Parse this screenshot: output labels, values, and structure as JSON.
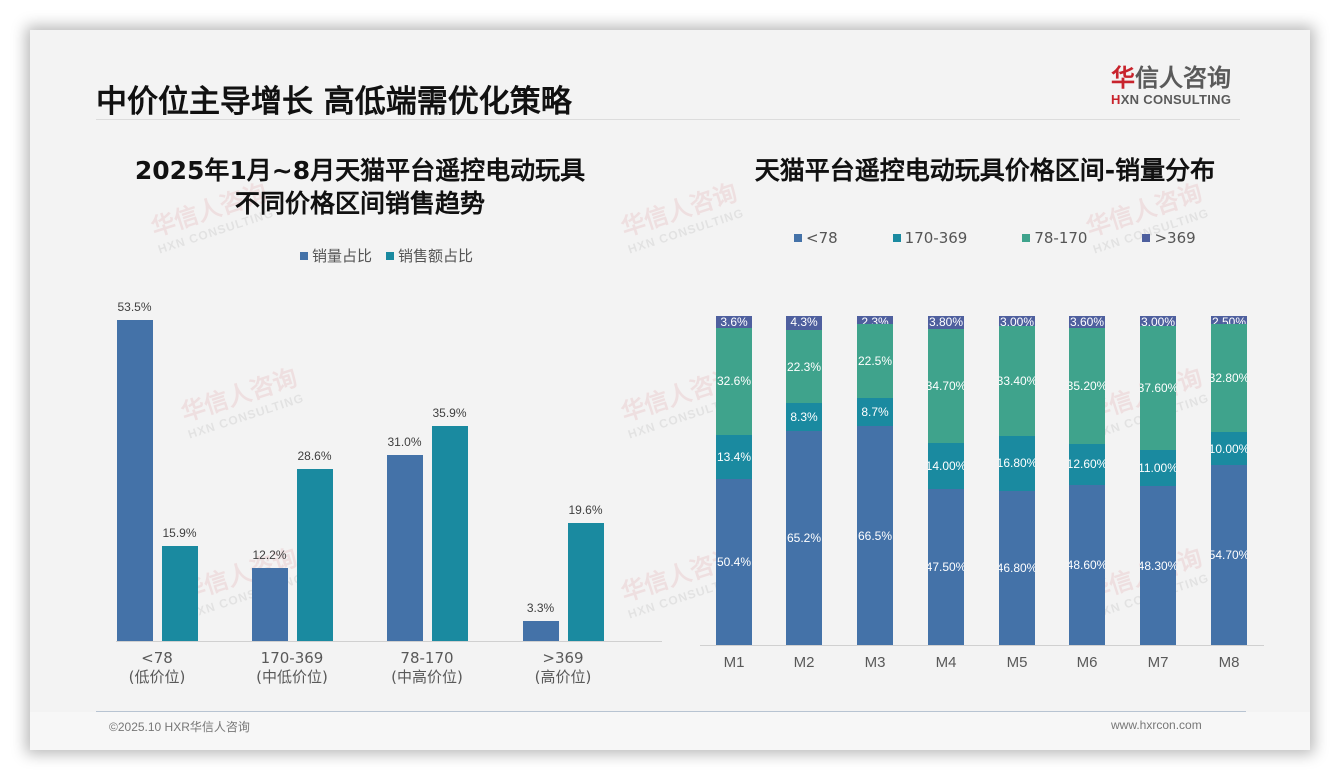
{
  "header": {
    "title": "中价位主导增长 高低端需优化策略",
    "logo": {
      "cn_first": "华",
      "cn_rest": "信人咨询",
      "en_prefix": "H",
      "en_rest": "XN CONSULTING"
    }
  },
  "watermark": {
    "cn": "华信人咨询",
    "en": "HXN CONSULTING"
  },
  "colors": {
    "blue": "#4472a8",
    "teal": "#1a8aa0",
    "green": "#3fa38c",
    "indigo": "#4e5f9e"
  },
  "left_chart": {
    "title_line1": "2025年1月~8月天猫平台遥控电动玩具",
    "title_line2": "不同价格区间销售趋势",
    "legend": [
      "销量占比",
      "销售额占比"
    ],
    "categories": [
      {
        "range": "<78",
        "tier": "(低价位)"
      },
      {
        "range": "170-369",
        "tier": "(中低价位)"
      },
      {
        "range": "78-170",
        "tier": "(中高价位)"
      },
      {
        "range": ">369",
        "tier": "(高价位)"
      }
    ],
    "volume_labels": [
      "53.5%",
      "12.2%",
      "31.0%",
      "3.3%"
    ],
    "sales_labels": [
      "15.9%",
      "28.6%",
      "35.9%",
      "19.6%"
    ]
  },
  "right_chart": {
    "title": "天猫平台遥控电动玩具价格区间-销量分布",
    "legend": [
      "<78",
      "170-369",
      "78-170",
      ">369"
    ],
    "months": [
      "M1",
      "M2",
      "M3",
      "M4",
      "M5",
      "M6",
      "M7",
      "M8"
    ],
    "labels": {
      "lt78": [
        "50.4%",
        "65.2%",
        "66.5%",
        "47.50%",
        "46.80%",
        "48.60%",
        "48.30%",
        "54.70%"
      ],
      "r170_369": [
        "13.4%",
        "8.3%",
        "8.7%",
        "14.00%",
        "16.80%",
        "12.60%",
        "11.00%",
        "10.00%"
      ],
      "r78_170": [
        "32.6%",
        "22.3%",
        "22.5%",
        "34.70%",
        "33.40%",
        "35.20%",
        "37.60%",
        "32.80%"
      ],
      "gt369": [
        "3.6%",
        "4.3%",
        "2.3%",
        "3.80%",
        "3.00%",
        "3.60%",
        "3.00%",
        "2.50%"
      ]
    }
  },
  "footer": {
    "left": "©2025.10 HXR华信人咨询",
    "right": "www.hxrcon.com"
  },
  "chart_data": [
    {
      "type": "bar",
      "title": "2025年1月~8月天猫平台遥控电动玩具不同价格区间销售趋势",
      "categories": [
        "<78 (低价位)",
        "170-369 (中低价位)",
        "78-170 (中高价位)",
        ">369 (高价位)"
      ],
      "series": [
        {
          "name": "销量占比",
          "values": [
            53.5,
            12.2,
            31.0,
            3.3
          ],
          "color": "#4472a8"
        },
        {
          "name": "销售额占比",
          "values": [
            15.9,
            28.6,
            35.9,
            19.6
          ],
          "color": "#1a8aa0"
        }
      ],
      "xlabel": "",
      "ylabel": "",
      "unit": "%",
      "legend_position": "top",
      "grid": false,
      "data_labels": true
    },
    {
      "type": "bar",
      "stacked": true,
      "percent_stacked": true,
      "title": "天猫平台遥控电动玩具价格区间-销量分布",
      "categories": [
        "M1",
        "M2",
        "M3",
        "M4",
        "M5",
        "M6",
        "M7",
        "M8"
      ],
      "series": [
        {
          "name": "<78",
          "values": [
            50.4,
            65.2,
            66.5,
            47.5,
            46.8,
            48.6,
            48.3,
            54.7
          ],
          "color": "#4472a8"
        },
        {
          "name": "170-369",
          "values": [
            13.4,
            8.3,
            8.7,
            14.0,
            16.8,
            12.6,
            11.0,
            10.0
          ],
          "color": "#1a8aa0"
        },
        {
          "name": "78-170",
          "values": [
            32.6,
            22.3,
            22.5,
            34.7,
            33.4,
            35.2,
            37.6,
            32.8
          ],
          "color": "#3fa38c"
        },
        {
          "name": ">369",
          "values": [
            3.6,
            4.3,
            2.3,
            3.8,
            3.0,
            3.6,
            3.0,
            2.5
          ],
          "color": "#4e5f9e"
        }
      ],
      "xlabel": "",
      "ylabel": "",
      "unit": "%",
      "ylim": [
        0,
        100
      ],
      "legend_position": "top",
      "grid": false,
      "data_labels": true
    }
  ]
}
